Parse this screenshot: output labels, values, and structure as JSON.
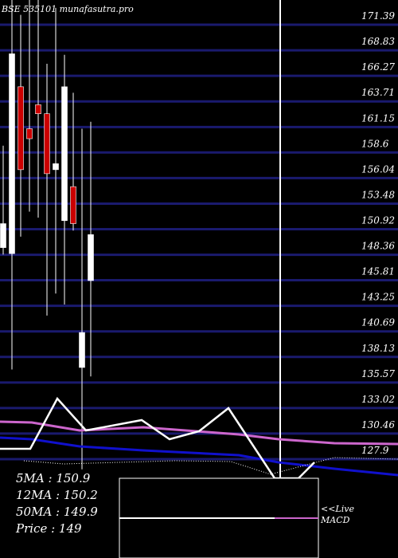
{
  "chart_data": {
    "type": "candlestick",
    "title": "BSE 535101 munafasutra.pro",
    "yticks": [
      171.39,
      168.83,
      166.27,
      163.71,
      161.15,
      158.6,
      156.04,
      153.48,
      150.92,
      148.36,
      145.81,
      143.25,
      140.69,
      138.13,
      135.57,
      133.02,
      130.46,
      127.9
    ],
    "ylim": [
      127.9,
      171.39
    ],
    "candles": [
      {
        "open": 150.6,
        "high": 158.4,
        "low": 147.5,
        "close": 148.2,
        "color": "white"
      },
      {
        "open": 147.6,
        "high": 174.0,
        "low": 136.0,
        "close": 167.6,
        "color": "white"
      },
      {
        "open": 164.3,
        "high": 171.5,
        "low": 149.3,
        "close": 156.0,
        "color": "red"
      },
      {
        "open": 160.1,
        "high": 173.5,
        "low": 151.8,
        "close": 159.1,
        "color": "red"
      },
      {
        "open": 162.5,
        "high": 174.5,
        "low": 151.2,
        "close": 161.6,
        "color": "red"
      },
      {
        "open": 161.6,
        "high": 166.6,
        "low": 141.4,
        "close": 155.6,
        "color": "red"
      },
      {
        "open": 156.6,
        "high": 172.2,
        "low": 143.6,
        "close": 156.0,
        "color": "white"
      },
      {
        "open": 150.9,
        "high": 167.5,
        "low": 142.5,
        "close": 164.3,
        "color": "white"
      },
      {
        "open": 154.3,
        "high": 163.7,
        "low": 149.9,
        "close": 150.6,
        "color": "red"
      },
      {
        "open": 136.2,
        "high": 160.1,
        "low": 126.0,
        "close": 139.7,
        "color": "white"
      },
      {
        "open": 144.9,
        "high": 160.8,
        "low": 135.3,
        "close": 149.5,
        "color": "white"
      }
    ],
    "moving_averages": {
      "5MA": 150.9,
      "12MA": 150.2,
      "50MA": 149.9
    },
    "price": 149,
    "colors": {
      "up": "#ffffff",
      "down": "#cc0000",
      "grid": "#1a1a6e",
      "ma_pink": "#cc66cc",
      "ma_blue": "#1010cc",
      "ma_white": "#ffffff"
    }
  },
  "stats": {
    "ma5_label": "5MA : 150.9",
    "ma12_label": "12MA : 150.2",
    "ma50_label": "50MA : 149.9",
    "price_label": "Price   : 149"
  },
  "live": {
    "line1": "<<Live",
    "line2": "MACD"
  }
}
